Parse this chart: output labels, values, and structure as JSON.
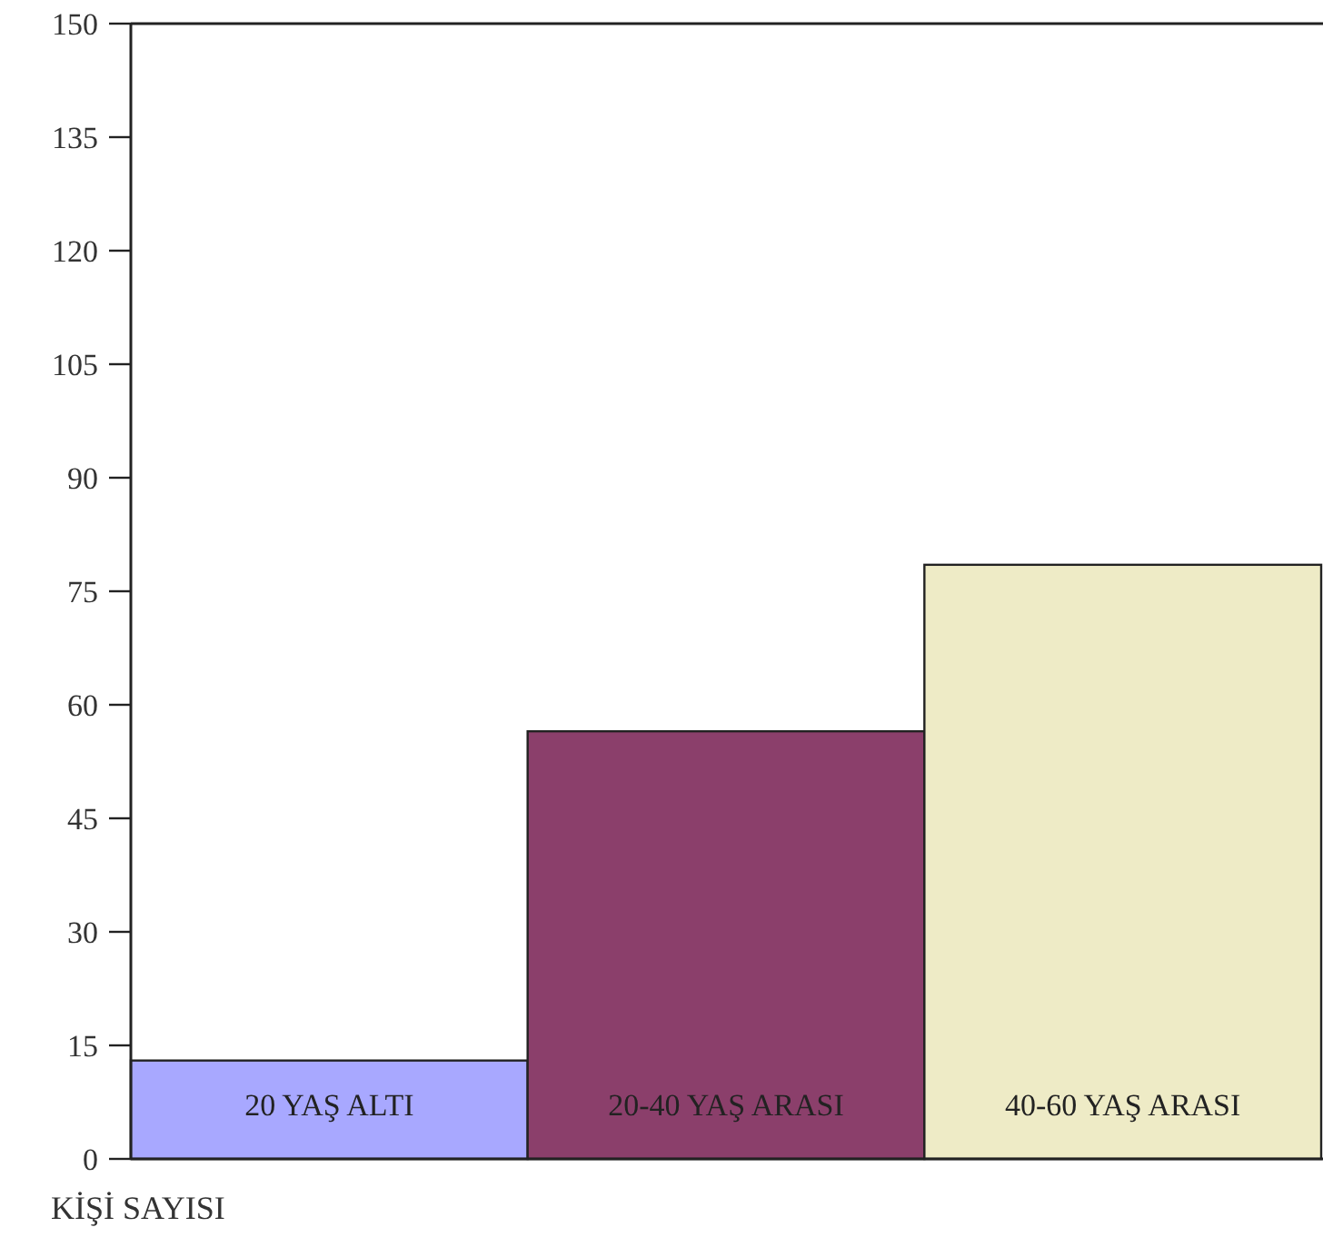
{
  "chart_data": {
    "type": "bar",
    "xlabel": "KİŞİ SAYISI",
    "categories": [
      "20 YAŞ ALTI",
      "20-40 YAŞ ARASI",
      "40-60 YAŞ ARASI"
    ],
    "values": [
      13,
      56.5,
      78.5
    ],
    "colors": [
      "#a8a8ff",
      "#8b3f6b",
      "#eeebc6"
    ],
    "ylim": [
      0,
      150
    ],
    "yticks": [
      0,
      15,
      30,
      45,
      60,
      75,
      90,
      105,
      120,
      135,
      150
    ],
    "grid": false
  }
}
